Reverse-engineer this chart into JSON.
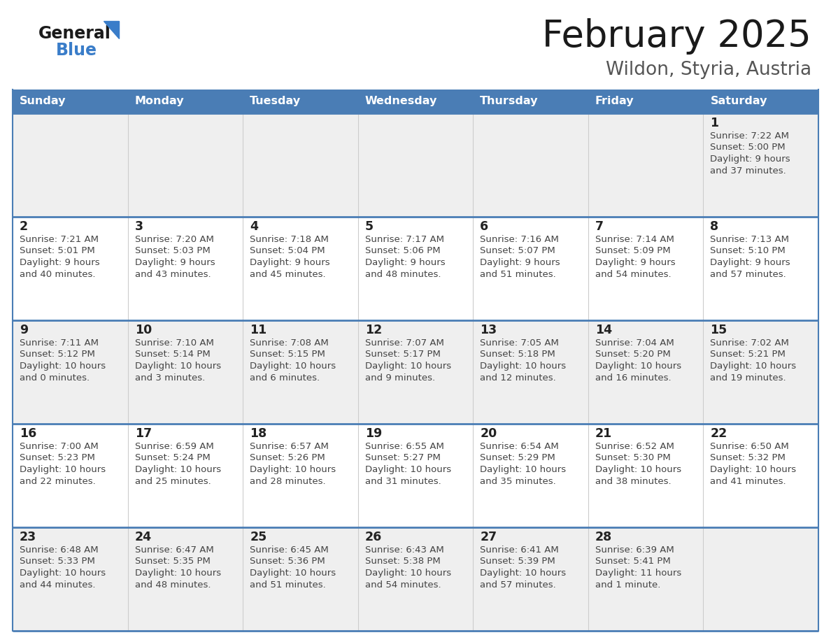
{
  "title": "February 2025",
  "subtitle": "Wildon, Styria, Austria",
  "days_of_week": [
    "Sunday",
    "Monday",
    "Tuesday",
    "Wednesday",
    "Thursday",
    "Friday",
    "Saturday"
  ],
  "header_bg": "#4A7DB5",
  "header_text": "#FFFFFF",
  "row_bg_light": "#EFEFEF",
  "row_bg_white": "#FFFFFF",
  "border_color": "#4A7DB5",
  "grid_line_color": "#CCCCCC",
  "day_num_color": "#222222",
  "cell_text_color": "#444444",
  "title_color": "#1a1a1a",
  "subtitle_color": "#555555",
  "logo_general_color": "#1a1a1a",
  "logo_blue_color": "#3A7DC9",
  "calendar_data": [
    {
      "day": 1,
      "col": 6,
      "row": 0,
      "sunrise": "7:22 AM",
      "sunset": "5:00 PM",
      "daylight_line1": "Daylight: 9 hours",
      "daylight_line2": "and 37 minutes."
    },
    {
      "day": 2,
      "col": 0,
      "row": 1,
      "sunrise": "7:21 AM",
      "sunset": "5:01 PM",
      "daylight_line1": "Daylight: 9 hours",
      "daylight_line2": "and 40 minutes."
    },
    {
      "day": 3,
      "col": 1,
      "row": 1,
      "sunrise": "7:20 AM",
      "sunset": "5:03 PM",
      "daylight_line1": "Daylight: 9 hours",
      "daylight_line2": "and 43 minutes."
    },
    {
      "day": 4,
      "col": 2,
      "row": 1,
      "sunrise": "7:18 AM",
      "sunset": "5:04 PM",
      "daylight_line1": "Daylight: 9 hours",
      "daylight_line2": "and 45 minutes."
    },
    {
      "day": 5,
      "col": 3,
      "row": 1,
      "sunrise": "7:17 AM",
      "sunset": "5:06 PM",
      "daylight_line1": "Daylight: 9 hours",
      "daylight_line2": "and 48 minutes."
    },
    {
      "day": 6,
      "col": 4,
      "row": 1,
      "sunrise": "7:16 AM",
      "sunset": "5:07 PM",
      "daylight_line1": "Daylight: 9 hours",
      "daylight_line2": "and 51 minutes."
    },
    {
      "day": 7,
      "col": 5,
      "row": 1,
      "sunrise": "7:14 AM",
      "sunset": "5:09 PM",
      "daylight_line1": "Daylight: 9 hours",
      "daylight_line2": "and 54 minutes."
    },
    {
      "day": 8,
      "col": 6,
      "row": 1,
      "sunrise": "7:13 AM",
      "sunset": "5:10 PM",
      "daylight_line1": "Daylight: 9 hours",
      "daylight_line2": "and 57 minutes."
    },
    {
      "day": 9,
      "col": 0,
      "row": 2,
      "sunrise": "7:11 AM",
      "sunset": "5:12 PM",
      "daylight_line1": "Daylight: 10 hours",
      "daylight_line2": "and 0 minutes."
    },
    {
      "day": 10,
      "col": 1,
      "row": 2,
      "sunrise": "7:10 AM",
      "sunset": "5:14 PM",
      "daylight_line1": "Daylight: 10 hours",
      "daylight_line2": "and 3 minutes."
    },
    {
      "day": 11,
      "col": 2,
      "row": 2,
      "sunrise": "7:08 AM",
      "sunset": "5:15 PM",
      "daylight_line1": "Daylight: 10 hours",
      "daylight_line2": "and 6 minutes."
    },
    {
      "day": 12,
      "col": 3,
      "row": 2,
      "sunrise": "7:07 AM",
      "sunset": "5:17 PM",
      "daylight_line1": "Daylight: 10 hours",
      "daylight_line2": "and 9 minutes."
    },
    {
      "day": 13,
      "col": 4,
      "row": 2,
      "sunrise": "7:05 AM",
      "sunset": "5:18 PM",
      "daylight_line1": "Daylight: 10 hours",
      "daylight_line2": "and 12 minutes."
    },
    {
      "day": 14,
      "col": 5,
      "row": 2,
      "sunrise": "7:04 AM",
      "sunset": "5:20 PM",
      "daylight_line1": "Daylight: 10 hours",
      "daylight_line2": "and 16 minutes."
    },
    {
      "day": 15,
      "col": 6,
      "row": 2,
      "sunrise": "7:02 AM",
      "sunset": "5:21 PM",
      "daylight_line1": "Daylight: 10 hours",
      "daylight_line2": "and 19 minutes."
    },
    {
      "day": 16,
      "col": 0,
      "row": 3,
      "sunrise": "7:00 AM",
      "sunset": "5:23 PM",
      "daylight_line1": "Daylight: 10 hours",
      "daylight_line2": "and 22 minutes."
    },
    {
      "day": 17,
      "col": 1,
      "row": 3,
      "sunrise": "6:59 AM",
      "sunset": "5:24 PM",
      "daylight_line1": "Daylight: 10 hours",
      "daylight_line2": "and 25 minutes."
    },
    {
      "day": 18,
      "col": 2,
      "row": 3,
      "sunrise": "6:57 AM",
      "sunset": "5:26 PM",
      "daylight_line1": "Daylight: 10 hours",
      "daylight_line2": "and 28 minutes."
    },
    {
      "day": 19,
      "col": 3,
      "row": 3,
      "sunrise": "6:55 AM",
      "sunset": "5:27 PM",
      "daylight_line1": "Daylight: 10 hours",
      "daylight_line2": "and 31 minutes."
    },
    {
      "day": 20,
      "col": 4,
      "row": 3,
      "sunrise": "6:54 AM",
      "sunset": "5:29 PM",
      "daylight_line1": "Daylight: 10 hours",
      "daylight_line2": "and 35 minutes."
    },
    {
      "day": 21,
      "col": 5,
      "row": 3,
      "sunrise": "6:52 AM",
      "sunset": "5:30 PM",
      "daylight_line1": "Daylight: 10 hours",
      "daylight_line2": "and 38 minutes."
    },
    {
      "day": 22,
      "col": 6,
      "row": 3,
      "sunrise": "6:50 AM",
      "sunset": "5:32 PM",
      "daylight_line1": "Daylight: 10 hours",
      "daylight_line2": "and 41 minutes."
    },
    {
      "day": 23,
      "col": 0,
      "row": 4,
      "sunrise": "6:48 AM",
      "sunset": "5:33 PM",
      "daylight_line1": "Daylight: 10 hours",
      "daylight_line2": "and 44 minutes."
    },
    {
      "day": 24,
      "col": 1,
      "row": 4,
      "sunrise": "6:47 AM",
      "sunset": "5:35 PM",
      "daylight_line1": "Daylight: 10 hours",
      "daylight_line2": "and 48 minutes."
    },
    {
      "day": 25,
      "col": 2,
      "row": 4,
      "sunrise": "6:45 AM",
      "sunset": "5:36 PM",
      "daylight_line1": "Daylight: 10 hours",
      "daylight_line2": "and 51 minutes."
    },
    {
      "day": 26,
      "col": 3,
      "row": 4,
      "sunrise": "6:43 AM",
      "sunset": "5:38 PM",
      "daylight_line1": "Daylight: 10 hours",
      "daylight_line2": "and 54 minutes."
    },
    {
      "day": 27,
      "col": 4,
      "row": 4,
      "sunrise": "6:41 AM",
      "sunset": "5:39 PM",
      "daylight_line1": "Daylight: 10 hours",
      "daylight_line2": "and 57 minutes."
    },
    {
      "day": 28,
      "col": 5,
      "row": 4,
      "sunrise": "6:39 AM",
      "sunset": "5:41 PM",
      "daylight_line1": "Daylight: 11 hours",
      "daylight_line2": "and 1 minute."
    }
  ]
}
